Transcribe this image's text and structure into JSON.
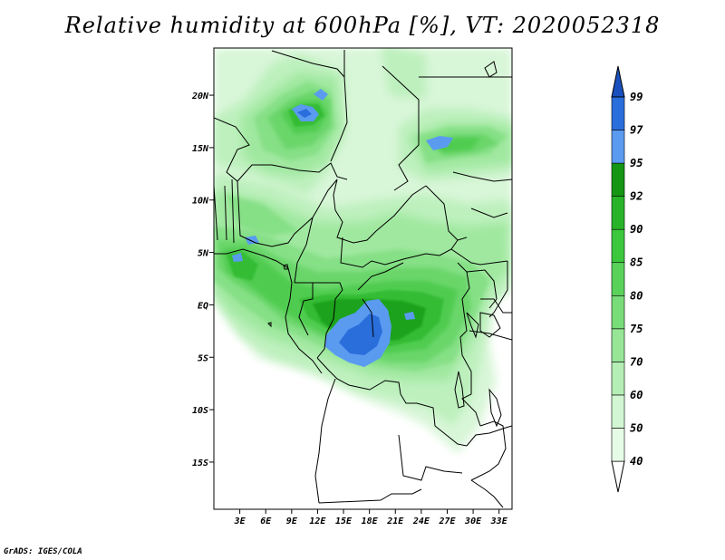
{
  "title": "Relative humidity at 600hPa [%], VT: 2020052318",
  "credit": "GrADS: IGES/COLA",
  "map": {
    "lon_range": [
      0,
      34.5
    ],
    "lat_range": [
      -19.5,
      24.5
    ],
    "lon_ticks": [
      {
        "value": 3,
        "label": "3E"
      },
      {
        "value": 6,
        "label": "6E"
      },
      {
        "value": 9,
        "label": "9E"
      },
      {
        "value": 12,
        "label": "12E"
      },
      {
        "value": 15,
        "label": "15E"
      },
      {
        "value": 18,
        "label": "18E"
      },
      {
        "value": 21,
        "label": "21E"
      },
      {
        "value": 24,
        "label": "24E"
      },
      {
        "value": 27,
        "label": "27E"
      },
      {
        "value": 30,
        "label": "30E"
      },
      {
        "value": 33,
        "label": "33E"
      }
    ],
    "lat_ticks": [
      {
        "value": 20,
        "label": "20N"
      },
      {
        "value": 15,
        "label": "15N"
      },
      {
        "value": 10,
        "label": "10N"
      },
      {
        "value": 5,
        "label": "5N"
      },
      {
        "value": 0,
        "label": "EQ"
      },
      {
        "value": -5,
        "label": "5S"
      },
      {
        "value": -10,
        "label": "10S"
      },
      {
        "value": -15,
        "label": "15S"
      }
    ]
  },
  "colorbar": {
    "levels": [
      {
        "label": "40",
        "color": "#e6fbe6"
      },
      {
        "label": "50",
        "color": "#d2f5d2"
      },
      {
        "label": "60",
        "color": "#b4eeb4"
      },
      {
        "label": "70",
        "color": "#96e696"
      },
      {
        "label": "75",
        "color": "#78dc78"
      },
      {
        "label": "80",
        "color": "#5ad25a"
      },
      {
        "label": "85",
        "color": "#3cc83c"
      },
      {
        "label": "90",
        "color": "#28b428"
      },
      {
        "label": "92",
        "color": "#149614"
      },
      {
        "label": "95",
        "color": "#5a9bf0"
      },
      {
        "label": "97",
        "color": "#2a6edc"
      },
      {
        "label": "99",
        "color": ""
      }
    ],
    "top_color": "#1a50be"
  },
  "chart_data": {
    "type": "contour-map",
    "title": "Relative humidity at 600hPa [%], VT: 2020052318",
    "variable": "Relative humidity at 600hPa",
    "units": "%",
    "valid_time": "2020052318",
    "contour_levels": [
      40,
      50,
      60,
      70,
      75,
      80,
      85,
      90,
      92,
      95,
      97,
      99
    ],
    "xlabel": "",
    "ylabel": ""
  }
}
